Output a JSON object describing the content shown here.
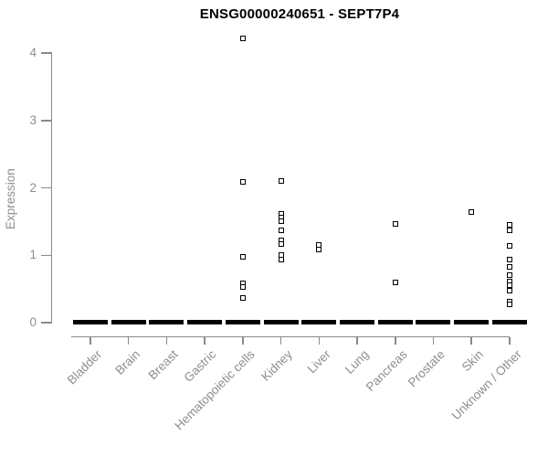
{
  "chart_data": {
    "type": "scatter",
    "title": "ENSG00000240651 - SEPT7P4",
    "xlabel": "",
    "ylabel": "Expression",
    "ylim": [
      0,
      4
    ],
    "yticks": [
      0,
      1,
      2,
      3,
      4
    ],
    "grid": false,
    "legend": false,
    "marker_style": "open-square",
    "point_color": "#000000",
    "axis_color": "#8a8a8a",
    "text_color": "#8e8e8e",
    "title_color": "#000000",
    "categories": [
      "Bladder",
      "Brain",
      "Breast",
      "Gastric",
      "Hematopoietic cells",
      "Kidney",
      "Liver",
      "Lung",
      "Pancreas",
      "Prostate",
      "Skin",
      "Unknown / Other"
    ],
    "zero_cluster_all_categories": true,
    "series": [
      {
        "category": "Bladder",
        "values": []
      },
      {
        "category": "Brain",
        "values": []
      },
      {
        "category": "Breast",
        "values": []
      },
      {
        "category": "Gastric",
        "values": []
      },
      {
        "category": "Hematopoietic cells",
        "values": [
          4.22,
          2.09,
          0.98,
          0.58,
          0.53,
          0.37
        ]
      },
      {
        "category": "Kidney",
        "values": [
          2.1,
          1.61,
          1.56,
          1.51,
          1.37,
          1.22,
          1.16,
          1.0,
          0.93
        ]
      },
      {
        "category": "Liver",
        "values": [
          1.15,
          1.08
        ]
      },
      {
        "category": "Lung",
        "values": []
      },
      {
        "category": "Pancreas",
        "values": [
          1.46,
          0.6
        ]
      },
      {
        "category": "Prostate",
        "values": []
      },
      {
        "category": "Skin",
        "values": [
          1.64
        ]
      },
      {
        "category": "Unknown / Other",
        "values": [
          1.45,
          1.37,
          1.14,
          0.94,
          0.83,
          0.71,
          0.61,
          0.55,
          0.48,
          0.31,
          0.27
        ]
      }
    ]
  }
}
